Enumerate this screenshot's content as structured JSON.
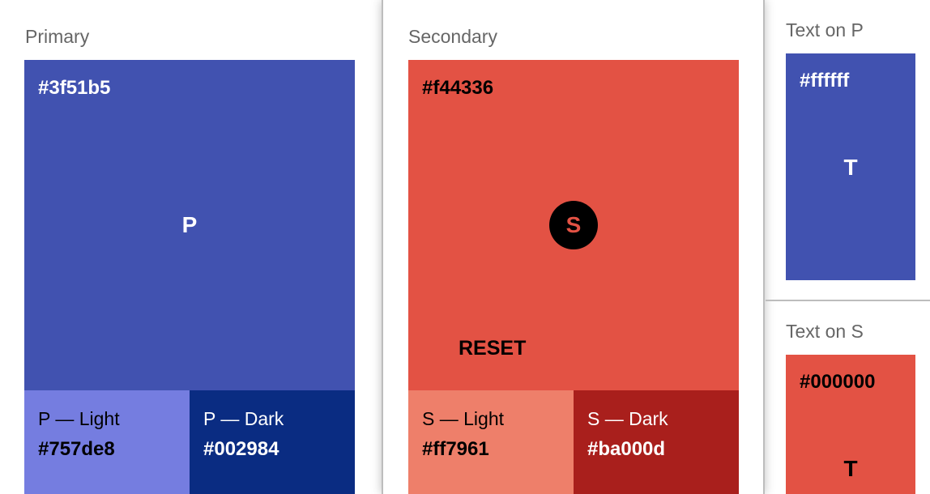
{
  "primary": {
    "label": "Primary",
    "hex": "#3f51b5",
    "letter": "P",
    "color": "#4152b0",
    "light": {
      "name": "P — Light",
      "hex": "#757de8",
      "color": "#757de0"
    },
    "dark": {
      "name": "P — Dark",
      "hex": "#002984",
      "color": "#0a2c82"
    }
  },
  "secondary": {
    "label": "Secondary",
    "hex": "#f44336",
    "letter": "S",
    "color": "#e35244",
    "reset": "RESET",
    "light": {
      "name": "S — Light",
      "hex": "#ff7961",
      "color": "#ee7f6a"
    },
    "dark": {
      "name": "S — Dark",
      "hex": "#ba000d",
      "color": "#a91f1c"
    }
  },
  "text_on_p": {
    "label": "Text on P",
    "hex": "#ffffff",
    "letter": "T"
  },
  "text_on_s": {
    "label": "Text on S",
    "hex": "#000000",
    "letter": "T"
  }
}
